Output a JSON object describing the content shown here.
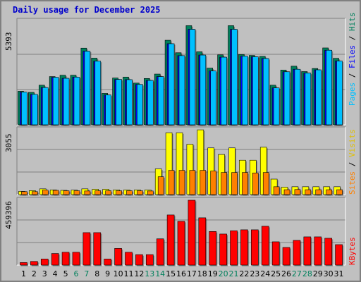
{
  "title": "Daily usage for December 2025",
  "colors": {
    "hits": "#00805c",
    "files": "#0000ff",
    "pages": "#00c0ff",
    "sites": "#ff8000",
    "visits": "#ffff00",
    "kbytes": "#ff0000",
    "weekend_label": "#00805c",
    "weekday_label": "#000000",
    "title": "#0000cc"
  },
  "right_labels": {
    "top": [
      "Pages",
      "Files",
      "Hits"
    ],
    "middle": [
      "Sites",
      "Visits"
    ],
    "bottom": [
      "KBytes"
    ]
  },
  "chart_data": [
    {
      "type": "bar",
      "panel": "top",
      "y_axis_label": "5393",
      "ylim": [
        0,
        5393
      ],
      "x": [
        1,
        2,
        3,
        4,
        5,
        6,
        7,
        8,
        9,
        10,
        11,
        12,
        13,
        14,
        15,
        16,
        17,
        18,
        19,
        20,
        21,
        22,
        23,
        24,
        25,
        26,
        27,
        28,
        29,
        30,
        31
      ],
      "series": [
        {
          "name": "Hits",
          "values": [
            1745,
            1688,
            2060,
            2510,
            2580,
            2580,
            3990,
            3470,
            1635,
            2435,
            2485,
            2170,
            2410,
            2640,
            4400,
            3750,
            5160,
            3800,
            2950,
            3640,
            5160,
            3660,
            3610,
            3560,
            2060,
            2850,
            3050,
            2770,
            2930,
            4000,
            3460
          ]
        },
        {
          "name": "Files",
          "values": [
            1700,
            1585,
            1940,
            2470,
            2420,
            2480,
            3830,
            3310,
            1550,
            2360,
            2350,
            2100,
            2310,
            2510,
            4220,
            3600,
            4970,
            3630,
            2800,
            3520,
            4970,
            3570,
            3540,
            3450,
            1920,
            2760,
            2890,
            2690,
            2860,
            3880,
            3320
          ]
        },
        {
          "name": "Pages",
          "values": [
            1700,
            1585,
            1940,
            2470,
            2420,
            2480,
            3830,
            3310,
            1550,
            2360,
            2350,
            2100,
            2310,
            2510,
            4220,
            3600,
            4970,
            3630,
            2800,
            3520,
            4970,
            3570,
            3540,
            3450,
            1920,
            2760,
            2890,
            2690,
            2860,
            3880,
            3320
          ]
        }
      ]
    },
    {
      "type": "bar",
      "panel": "middle",
      "y_axis_label": "3055",
      "ylim": [
        0,
        3055
      ],
      "x": [
        1,
        2,
        3,
        4,
        5,
        6,
        7,
        8,
        9,
        10,
        11,
        12,
        13,
        14,
        15,
        16,
        17,
        18,
        19,
        20,
        21,
        22,
        23,
        24,
        25,
        26,
        27,
        28,
        29,
        30,
        31
      ],
      "series": [
        {
          "name": "Visits",
          "values": [
            153,
            187,
            270,
            220,
            200,
            210,
            270,
            250,
            250,
            220,
            220,
            220,
            220,
            1210,
            2910,
            2910,
            2370,
            3050,
            2200,
            1890,
            2200,
            1620,
            1620,
            2230,
            730,
            350,
            370,
            370,
            370,
            370,
            370
          ]
        },
        {
          "name": "Sites",
          "values": [
            140,
            140,
            210,
            200,
            180,
            180,
            170,
            180,
            180,
            180,
            180,
            180,
            170,
            840,
            1140,
            1140,
            1140,
            1140,
            1110,
            1040,
            1040,
            1040,
            1020,
            1040,
            370,
            230,
            240,
            230,
            230,
            230,
            230
          ]
        }
      ]
    },
    {
      "type": "bar",
      "panel": "bottom",
      "y_axis_label": "459396",
      "ylim": [
        0,
        459396
      ],
      "x": [
        1,
        2,
        3,
        4,
        5,
        6,
        7,
        8,
        9,
        10,
        11,
        12,
        13,
        14,
        15,
        16,
        17,
        18,
        19,
        20,
        21,
        22,
        23,
        24,
        25,
        26,
        27,
        28,
        29,
        30,
        31
      ],
      "series": [
        {
          "name": "KBytes",
          "values": [
            18000,
            26000,
            43000,
            82000,
            91000,
            91000,
            230000,
            230000,
            43000,
            118000,
            91000,
            74000,
            74000,
            186000,
            355000,
            310000,
            459396,
            335000,
            238000,
            220000,
            243000,
            250000,
            250000,
            275000,
            165000,
            125000,
            175000,
            200000,
            200000,
            190000,
            145000
          ]
        }
      ]
    }
  ],
  "x_labels": [
    "1",
    "2",
    "3",
    "4",
    "5",
    "6",
    "7",
    "8",
    "9",
    "10",
    "11",
    "12",
    "13",
    "14",
    "15",
    "16",
    "17",
    "18",
    "19",
    "20",
    "21",
    "22",
    "23",
    "24",
    "25",
    "26",
    "27",
    "28",
    "29",
    "30",
    "31"
  ],
  "weekend_days": [
    6,
    7,
    13,
    14,
    20,
    21,
    27,
    28
  ]
}
